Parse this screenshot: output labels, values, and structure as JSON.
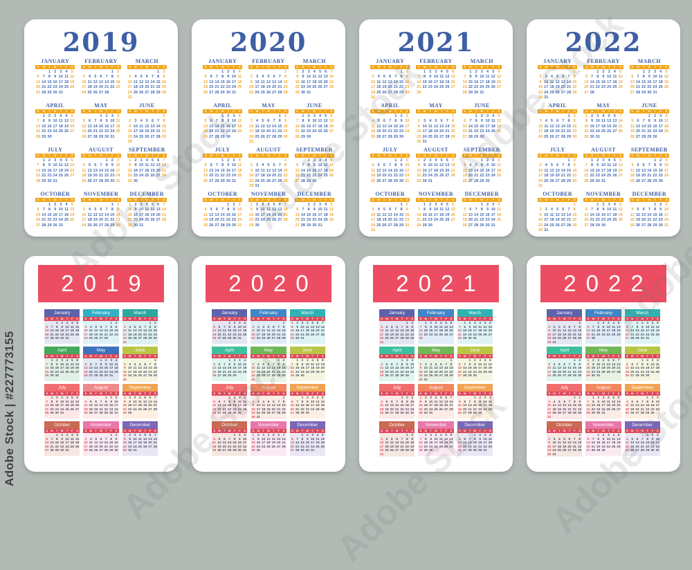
{
  "background_color": "#b3bab6",
  "watermark": {
    "side_text": "Adobe Stock | #227773155",
    "diagonal_text": "Adobe Stock"
  },
  "week_start": "Sunday",
  "weekday_letters": [
    "S",
    "M",
    "T",
    "W",
    "T",
    "F",
    "S"
  ],
  "top_cards": {
    "years": [
      "2019",
      "2020",
      "2021",
      "2022"
    ],
    "month_names": [
      "JANUARY",
      "FEBRUARY",
      "MARCH",
      "APRIL",
      "MAY",
      "JUNE",
      "JULY",
      "AUGUST",
      "SEPTEMBER",
      "OCTOBER",
      "NOVEMBER",
      "DECEMBER"
    ],
    "colors": {
      "card_bg": "#ffffff",
      "year_text": "#3f5fa5",
      "month_title": "#3f5fa5",
      "weekday_bar": "#f2a71c",
      "weekday_letter": "#ffffff",
      "day_number": "#3e66b2",
      "weekend_number": "#f0a42a"
    }
  },
  "bottom_cards": {
    "years": [
      "2019",
      "2020",
      "2021",
      "2022"
    ],
    "month_names": [
      "January",
      "February",
      "March",
      "April",
      "May",
      "June",
      "July",
      "August",
      "September",
      "October",
      "November",
      "December"
    ],
    "colors": {
      "card_bg": "#ffffff",
      "banner_bg": "#ec4d62",
      "banner_text": "#ffffff",
      "weekday_bar": "#dc4a5c",
      "weekday_letter": "#ffffff",
      "day_number": "#474b63",
      "sunday_number": "#dd4a5e"
    },
    "month_header_colors": {
      "2019": [
        "#5d63ab",
        "#2fb0c5",
        "#2aa9a0",
        "#44a95c",
        "#3e72ba",
        "#b9c645",
        "#f16d6d",
        "#f08a8a",
        "#f2a351",
        "#c96a52",
        "#e878ab",
        "#7a67b8"
      ],
      "2020": [
        "#5d63ab",
        "#3f86c7",
        "#2fb2b2",
        "#3ec09e",
        "#70b757",
        "#b9c645",
        "#f16d6d",
        "#f2875f",
        "#f2a351",
        "#c96a52",
        "#e878ab",
        "#7a67b8"
      ],
      "2021": [
        "#5d63ab",
        "#3f86c7",
        "#2fb2b2",
        "#3ec09e",
        "#70b757",
        "#b9c645",
        "#f16d6d",
        "#f2875f",
        "#f2a351",
        "#c96a52",
        "#e878ab",
        "#7a67b8"
      ],
      "2022": [
        "#5d63ab",
        "#3f86c7",
        "#2fb2b2",
        "#3ec09e",
        "#70b757",
        "#b9c645",
        "#f16d6d",
        "#f2875f",
        "#f2a351",
        "#c96a52",
        "#e878ab",
        "#7a67b8"
      ]
    }
  }
}
